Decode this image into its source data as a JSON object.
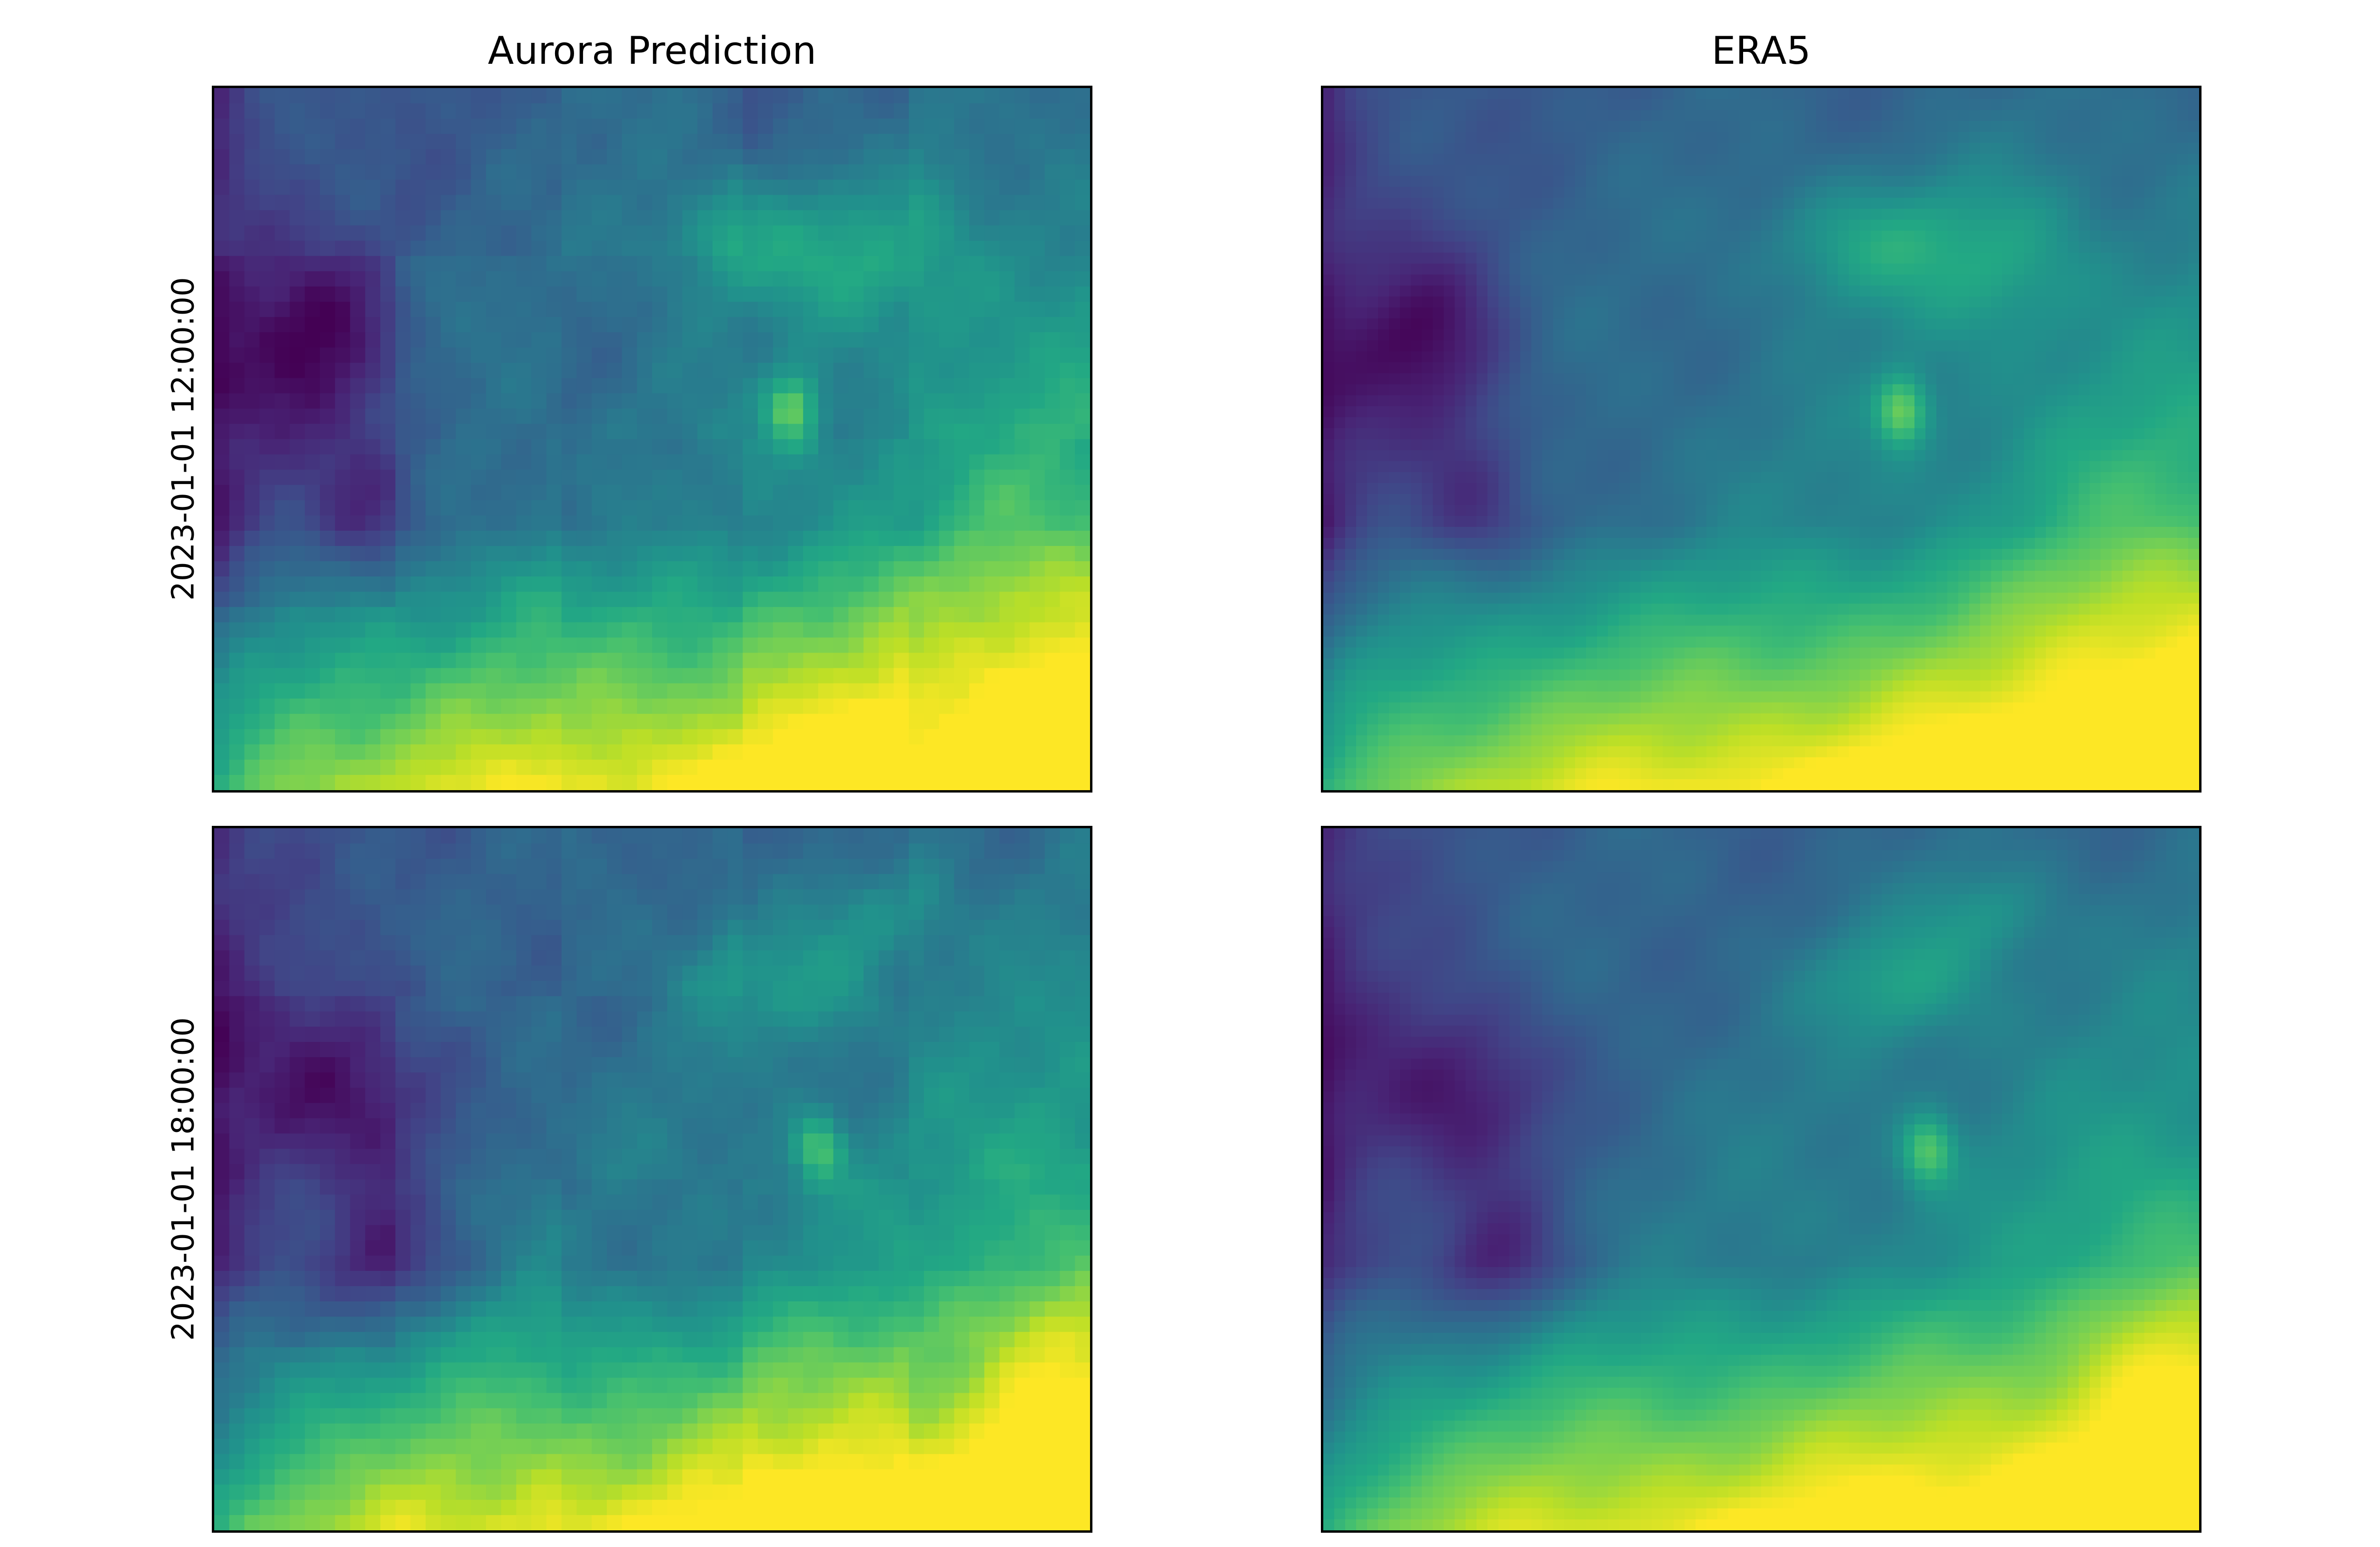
{
  "chart_data": {
    "type": "heatmap",
    "colormap": "viridis",
    "columns": [
      "Aurora Prediction",
      "ERA5"
    ],
    "rows": [
      "2023-01-01 12:00:00",
      "2023-01-01 18:00:00"
    ],
    "axes_ticks": "none",
    "panels": [
      {
        "row": "2023-01-01 12:00:00",
        "column": "Aurora Prediction",
        "grid": "coarse"
      },
      {
        "row": "2023-01-01 12:00:00",
        "column": "ERA5",
        "grid": "smooth"
      },
      {
        "row": "2023-01-01 18:00:00",
        "column": "Aurora Prediction",
        "grid": "coarse"
      },
      {
        "row": "2023-01-01 18:00:00",
        "column": "ERA5",
        "grid": "smooth"
      }
    ],
    "colors": {
      "low": "#440154",
      "mid": "#21918c",
      "high": "#fde725"
    }
  }
}
